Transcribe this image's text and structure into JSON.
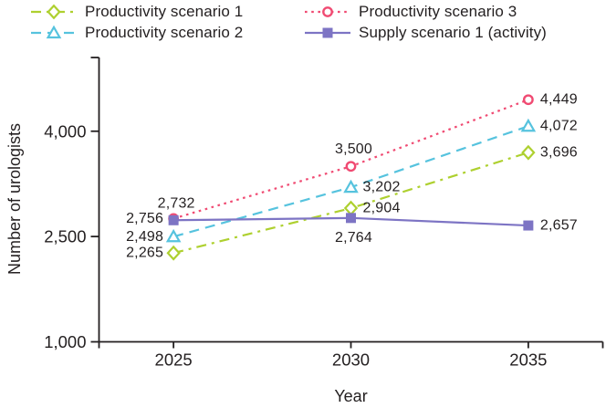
{
  "chart_data": {
    "type": "line",
    "title": "",
    "xlabel": "Year",
    "ylabel": "Number of urologists",
    "x": [
      2025,
      2030,
      2035
    ],
    "x_tick_labels": [
      "2025",
      "2030",
      "2035"
    ],
    "xlim": [
      2022.9,
      2037.1
    ],
    "y_ticks": [
      1000,
      2500,
      4000
    ],
    "y_tick_labels": [
      "1,000",
      "2,500",
      "4,000"
    ],
    "ylim": [
      1000,
      5050
    ],
    "grid": false,
    "legend_position": "top",
    "text_color": "#231f20",
    "axis_color": "#231f20",
    "series": [
      {
        "name": "Productivity scenario 1",
        "values": [
          2265,
          2904,
          3696
        ],
        "labels": [
          "2,265",
          "2,904",
          "3,696"
        ],
        "color": "#aed02f",
        "line_style": "dash-dot",
        "marker": "diamond",
        "label_placement": [
          "left",
          "right",
          "right"
        ]
      },
      {
        "name": "Productivity scenario 2",
        "values": [
          2498,
          3202,
          4072
        ],
        "labels": [
          "2,498",
          "3,202",
          "4,072"
        ],
        "color": "#56c3de",
        "line_style": "dashed",
        "marker": "triangle",
        "label_placement": [
          "left",
          "right",
          "right"
        ]
      },
      {
        "name": "Productivity scenario 3",
        "values": [
          2756,
          3500,
          4449
        ],
        "labels": [
          "2,756",
          "3,500",
          "4,449"
        ],
        "color": "#f04a72",
        "line_style": "dotted",
        "marker": "circle",
        "label_placement": [
          "left",
          "above",
          "right"
        ]
      },
      {
        "name": "Supply scenario 1 (activity)",
        "values": [
          2732,
          2764,
          2657
        ],
        "labels": [
          "2,732",
          "2,764",
          "2,657"
        ],
        "color": "#7d74c4",
        "line_style": "solid",
        "marker": "square",
        "label_placement": [
          "above",
          "below",
          "right"
        ]
      }
    ]
  }
}
